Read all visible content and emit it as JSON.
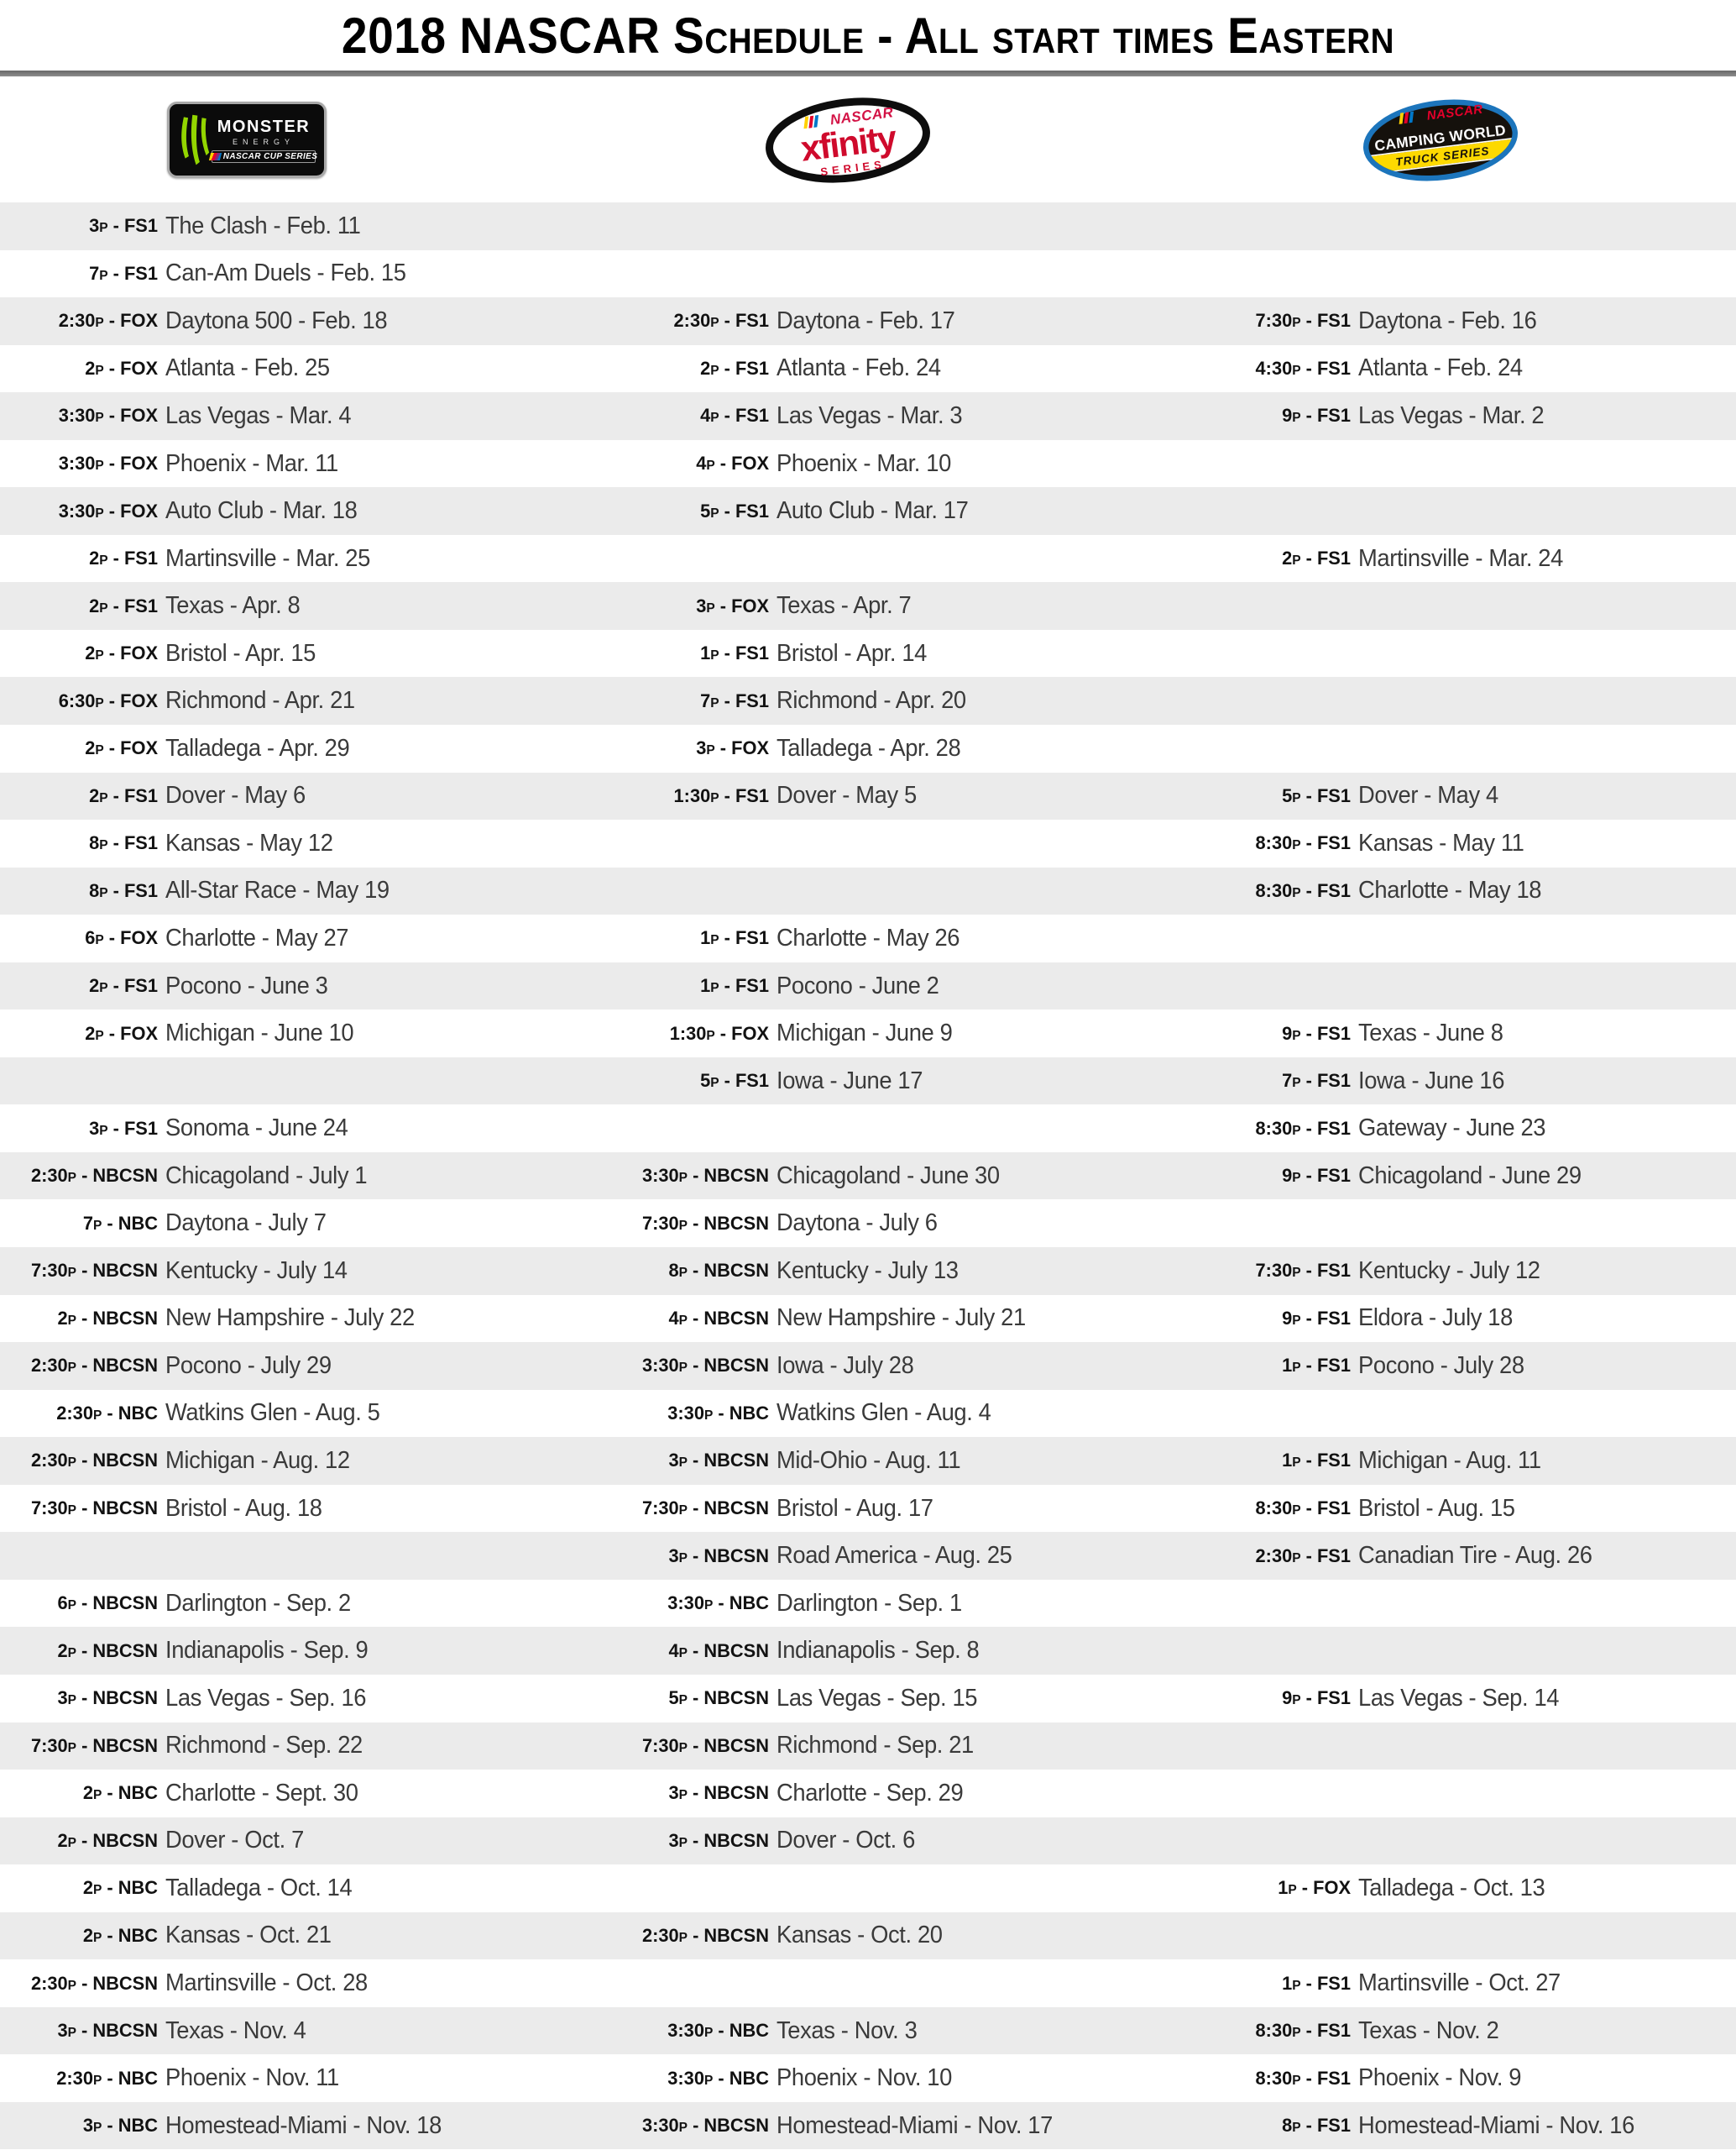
{
  "title": "2018 NASCAR Schedule - All start times Eastern",
  "colors": {
    "row_alt": "#ebebeb",
    "divider": "#7a7a7a",
    "time_text": "#121212",
    "race_text": "#3a3a3a",
    "monster_green": "#93d500",
    "xfinity_red": "#cf0a2c",
    "nascar_red": "#e4002b",
    "truck_blue": "#1c75bc",
    "truck_yellow": "#fdd900"
  },
  "logos": {
    "cup": {
      "name": "Monster Energy NASCAR Cup Series",
      "brand": "MONSTER",
      "sub": "ENERGY",
      "series": "NASCAR CUP SERIES"
    },
    "xfinity": {
      "name": "NASCAR Xfinity Series",
      "nascar": "NASCAR",
      "brand": "xfinity",
      "series": "SERIES"
    },
    "truck": {
      "name": "NASCAR Camping World Truck Series",
      "nascar": "NASCAR",
      "brand": "CAMPING WORLD",
      "series": "TRUCK SERIES"
    }
  },
  "schedule": {
    "columns": [
      "cup",
      "xfinity",
      "truck"
    ],
    "rows": [
      {
        "cup": {
          "tn": "3p - FS1",
          "race": "The Clash - Feb. 11"
        },
        "xfinity": null,
        "truck": null
      },
      {
        "cup": {
          "tn": "7p - FS1",
          "race": "Can-Am Duels - Feb. 15"
        },
        "xfinity": null,
        "truck": null
      },
      {
        "cup": {
          "tn": "2:30p - FOX",
          "race": "Daytona 500 - Feb. 18"
        },
        "xfinity": {
          "tn": "2:30p - FS1",
          "race": "Daytona - Feb. 17"
        },
        "truck": {
          "tn": "7:30p - FS1",
          "race": "Daytona - Feb. 16"
        }
      },
      {
        "cup": {
          "tn": "2p - FOX",
          "race": "Atlanta - Feb. 25"
        },
        "xfinity": {
          "tn": "2p - FS1",
          "race": "Atlanta - Feb. 24"
        },
        "truck": {
          "tn": "4:30p - FS1",
          "race": "Atlanta - Feb. 24"
        }
      },
      {
        "cup": {
          "tn": "3:30p - FOX",
          "race": "Las Vegas - Mar. 4"
        },
        "xfinity": {
          "tn": "4p - FS1",
          "race": "Las Vegas - Mar. 3"
        },
        "truck": {
          "tn": "9p - FS1",
          "race": "Las Vegas - Mar. 2"
        }
      },
      {
        "cup": {
          "tn": "3:30p - FOX",
          "race": "Phoenix - Mar. 11"
        },
        "xfinity": {
          "tn": "4p - FOX",
          "race": "Phoenix - Mar. 10"
        },
        "truck": null
      },
      {
        "cup": {
          "tn": "3:30p - FOX",
          "race": "Auto Club - Mar. 18"
        },
        "xfinity": {
          "tn": "5p - FS1",
          "race": "Auto Club - Mar. 17"
        },
        "truck": null
      },
      {
        "cup": {
          "tn": "2p - FS1",
          "race": "Martinsville - Mar. 25"
        },
        "xfinity": null,
        "truck": {
          "tn": "2p - FS1",
          "race": "Martinsville - Mar. 24"
        }
      },
      {
        "cup": {
          "tn": "2p - FS1",
          "race": "Texas - Apr. 8"
        },
        "xfinity": {
          "tn": "3p - FOX",
          "race": "Texas - Apr. 7"
        },
        "truck": null
      },
      {
        "cup": {
          "tn": "2p - FOX",
          "race": "Bristol - Apr. 15"
        },
        "xfinity": {
          "tn": "1p - FS1",
          "race": "Bristol - Apr. 14"
        },
        "truck": null
      },
      {
        "cup": {
          "tn": "6:30p - FOX",
          "race": "Richmond - Apr. 21"
        },
        "xfinity": {
          "tn": "7p - FS1",
          "race": "Richmond - Apr. 20"
        },
        "truck": null
      },
      {
        "cup": {
          "tn": "2p - FOX",
          "race": "Talladega - Apr. 29"
        },
        "xfinity": {
          "tn": "3p - FOX",
          "race": "Talladega - Apr. 28"
        },
        "truck": null
      },
      {
        "cup": {
          "tn": "2p - FS1",
          "race": "Dover - May 6"
        },
        "xfinity": {
          "tn": "1:30p - FS1",
          "race": "Dover - May 5"
        },
        "truck": {
          "tn": "5p - FS1",
          "race": "Dover - May 4"
        }
      },
      {
        "cup": {
          "tn": "8p - FS1",
          "race": "Kansas - May 12"
        },
        "xfinity": null,
        "truck": {
          "tn": "8:30p - FS1",
          "race": "Kansas - May 11"
        }
      },
      {
        "cup": {
          "tn": "8p - FS1",
          "race": "All-Star Race - May 19"
        },
        "xfinity": null,
        "truck": {
          "tn": "8:30p - FS1",
          "race": "Charlotte - May 18"
        }
      },
      {
        "cup": {
          "tn": "6p - FOX",
          "race": "Charlotte - May 27"
        },
        "xfinity": {
          "tn": "1p - FS1",
          "race": "Charlotte - May 26"
        },
        "truck": null
      },
      {
        "cup": {
          "tn": "2p - FS1",
          "race": "Pocono - June 3"
        },
        "xfinity": {
          "tn": "1p - FS1",
          "race": "Pocono - June 2"
        },
        "truck": null
      },
      {
        "cup": {
          "tn": "2p - FOX",
          "race": "Michigan - June 10"
        },
        "xfinity": {
          "tn": "1:30p - FOX",
          "race": "Michigan - June 9"
        },
        "truck": {
          "tn": "9p - FS1",
          "race": "Texas - June 8"
        }
      },
      {
        "cup": null,
        "xfinity": {
          "tn": "5p - FS1",
          "race": "Iowa - June 17"
        },
        "truck": {
          "tn": "7p - FS1",
          "race": "Iowa - June 16"
        }
      },
      {
        "cup": {
          "tn": "3p - FS1",
          "race": "Sonoma - June 24"
        },
        "xfinity": null,
        "truck": {
          "tn": "8:30p - FS1",
          "race": "Gateway - June 23"
        }
      },
      {
        "cup": {
          "tn": "2:30p - NBCSN",
          "race": "Chicagoland - July 1"
        },
        "xfinity": {
          "tn": "3:30p - NBCSN",
          "race": "Chicagoland - June 30"
        },
        "truck": {
          "tn": "9p - FS1",
          "race": "Chicagoland - June 29"
        }
      },
      {
        "cup": {
          "tn": "7p - NBC",
          "race": "Daytona - July 7"
        },
        "xfinity": {
          "tn": "7:30p - NBCSN",
          "race": "Daytona - July 6"
        },
        "truck": null
      },
      {
        "cup": {
          "tn": "7:30p - NBCSN",
          "race": "Kentucky - July 14"
        },
        "xfinity": {
          "tn": "8p - NBCSN",
          "race": "Kentucky - July 13"
        },
        "truck": {
          "tn": "7:30p - FS1",
          "race": "Kentucky - July 12"
        }
      },
      {
        "cup": {
          "tn": "2p - NBCSN",
          "race": "New Hampshire - July 22"
        },
        "xfinity": {
          "tn": "4p - NBCSN",
          "race": "New Hampshire - July 21"
        },
        "truck": {
          "tn": "9p - FS1",
          "race": "Eldora - July 18"
        }
      },
      {
        "cup": {
          "tn": "2:30p - NBCSN",
          "race": "Pocono - July 29"
        },
        "xfinity": {
          "tn": "3:30p - NBCSN",
          "race": "Iowa - July 28"
        },
        "truck": {
          "tn": "1p - FS1",
          "race": "Pocono - July 28"
        }
      },
      {
        "cup": {
          "tn": "2:30p - NBC",
          "race": "Watkins Glen - Aug. 5"
        },
        "xfinity": {
          "tn": "3:30p - NBC",
          "race": "Watkins Glen - Aug. 4"
        },
        "truck": null
      },
      {
        "cup": {
          "tn": "2:30p - NBCSN",
          "race": "Michigan - Aug. 12"
        },
        "xfinity": {
          "tn": "3p - NBCSN",
          "race": "Mid-Ohio - Aug. 11"
        },
        "truck": {
          "tn": "1p - FS1",
          "race": "Michigan - Aug. 11"
        }
      },
      {
        "cup": {
          "tn": "7:30p - NBCSN",
          "race": "Bristol - Aug. 18"
        },
        "xfinity": {
          "tn": "7:30p - NBCSN",
          "race": "Bristol - Aug. 17"
        },
        "truck": {
          "tn": "8:30p - FS1",
          "race": "Bristol - Aug. 15"
        }
      },
      {
        "cup": null,
        "xfinity": {
          "tn": "3p - NBCSN",
          "race": "Road America - Aug. 25"
        },
        "truck": {
          "tn": "2:30p - FS1",
          "race": "Canadian Tire - Aug. 26"
        }
      },
      {
        "cup": {
          "tn": "6p - NBCSN",
          "race": "Darlington - Sep. 2"
        },
        "xfinity": {
          "tn": "3:30p - NBC",
          "race": "Darlington - Sep. 1"
        },
        "truck": null
      },
      {
        "cup": {
          "tn": "2p - NBCSN",
          "race": "Indianapolis - Sep. 9"
        },
        "xfinity": {
          "tn": "4p - NBCSN",
          "race": "Indianapolis - Sep. 8"
        },
        "truck": null
      },
      {
        "cup": {
          "tn": "3p - NBCSN",
          "race": "Las Vegas - Sep. 16"
        },
        "xfinity": {
          "tn": "5p - NBCSN",
          "race": "Las Vegas - Sep. 15"
        },
        "truck": {
          "tn": "9p - FS1",
          "race": "Las Vegas - Sep. 14"
        }
      },
      {
        "cup": {
          "tn": "7:30p - NBCSN",
          "race": "Richmond - Sep. 22"
        },
        "xfinity": {
          "tn": "7:30p - NBCSN",
          "race": "Richmond - Sep. 21"
        },
        "truck": null
      },
      {
        "cup": {
          "tn": "2p - NBC",
          "race": "Charlotte - Sept. 30"
        },
        "xfinity": {
          "tn": "3p - NBCSN",
          "race": "Charlotte - Sep. 29"
        },
        "truck": null
      },
      {
        "cup": {
          "tn": "2p - NBCSN",
          "race": "Dover - Oct. 7"
        },
        "xfinity": {
          "tn": "3p - NBCSN",
          "race": "Dover - Oct. 6"
        },
        "truck": null
      },
      {
        "cup": {
          "tn": "2p - NBC",
          "race": "Talladega - Oct. 14"
        },
        "xfinity": null,
        "truck": {
          "tn": "1p - FOX",
          "race": "Talladega - Oct. 13"
        }
      },
      {
        "cup": {
          "tn": "2p - NBC",
          "race": "Kansas - Oct. 21"
        },
        "xfinity": {
          "tn": "2:30p - NBCSN",
          "race": "Kansas - Oct. 20"
        },
        "truck": null
      },
      {
        "cup": {
          "tn": "2:30p - NBCSN",
          "race": "Martinsville - Oct. 28"
        },
        "xfinity": null,
        "truck": {
          "tn": "1p - FS1",
          "race": "Martinsville - Oct. 27"
        }
      },
      {
        "cup": {
          "tn": "3p - NBCSN",
          "race": "Texas - Nov. 4"
        },
        "xfinity": {
          "tn": "3:30p - NBC",
          "race": "Texas - Nov. 3"
        },
        "truck": {
          "tn": "8:30p - FS1",
          "race": "Texas - Nov. 2"
        }
      },
      {
        "cup": {
          "tn": "2:30p - NBC",
          "race": "Phoenix - Nov. 11"
        },
        "xfinity": {
          "tn": "3:30p - NBC",
          "race": "Phoenix - Nov. 10"
        },
        "truck": {
          "tn": "8:30p - FS1",
          "race": "Phoenix - Nov. 9"
        }
      },
      {
        "cup": {
          "tn": "3p - NBC",
          "race": "Homestead-Miami - Nov. 18"
        },
        "xfinity": {
          "tn": "3:30p - NBCSN",
          "race": "Homestead-Miami - Nov. 17"
        },
        "truck": {
          "tn": "8p - FS1",
          "race": "Homestead-Miami - Nov. 16"
        }
      }
    ]
  }
}
